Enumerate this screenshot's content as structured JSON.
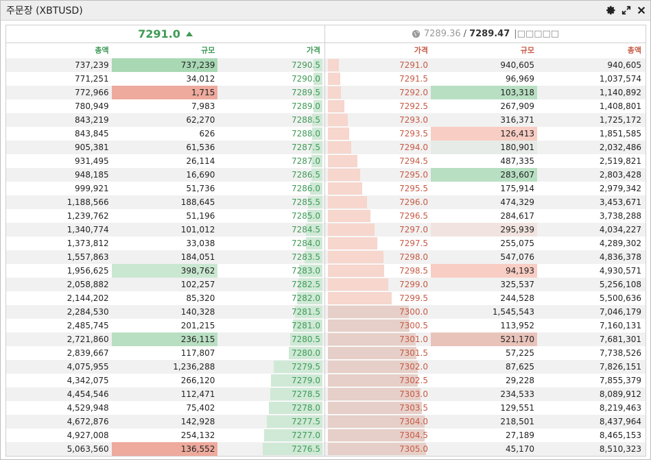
{
  "window": {
    "title": "주문장 (XBTUSD)"
  },
  "summary": {
    "last_price": "7291.0",
    "index_price": "7289.36",
    "mark_price": "7289.47",
    "separator": "/",
    "funding": "□□□□□"
  },
  "headers": {
    "bid_total": "총액",
    "bid_size": "규모",
    "bid_price": "가격",
    "ask_price": "가격",
    "ask_size": "규모",
    "ask_total": "총액"
  },
  "colors": {
    "buy": "#3f9a56",
    "sell": "#c65a45"
  },
  "bids": [
    {
      "total": "737,239",
      "size": "737,239",
      "price": "7290.5",
      "depth": 0.09,
      "hl": "hl-green"
    },
    {
      "total": "771,251",
      "size": "34,012",
      "price": "7290.0",
      "depth": 0.09,
      "hl": ""
    },
    {
      "total": "772,966",
      "size": "1,715",
      "price": "7289.5",
      "depth": 0.09,
      "hl": "hl-red"
    },
    {
      "total": "780,949",
      "size": "7,983",
      "price": "7289.0",
      "depth": 0.09,
      "hl": ""
    },
    {
      "total": "843,219",
      "size": "62,270",
      "price": "7288.5",
      "depth": 0.1,
      "hl": ""
    },
    {
      "total": "843,845",
      "size": "626",
      "price": "7288.0",
      "depth": 0.1,
      "hl": ""
    },
    {
      "total": "905,381",
      "size": "61,536",
      "price": "7287.5",
      "depth": 0.11,
      "hl": ""
    },
    {
      "total": "931,495",
      "size": "26,114",
      "price": "7287.0",
      "depth": 0.11,
      "hl": ""
    },
    {
      "total": "948,185",
      "size": "16,690",
      "price": "7286.5",
      "depth": 0.11,
      "hl": ""
    },
    {
      "total": "999,921",
      "size": "51,736",
      "price": "7286.0",
      "depth": 0.12,
      "hl": ""
    },
    {
      "total": "1,188,566",
      "size": "188,645",
      "price": "7285.5",
      "depth": 0.14,
      "hl": ""
    },
    {
      "total": "1,239,762",
      "size": "51,196",
      "price": "7285.0",
      "depth": 0.15,
      "hl": ""
    },
    {
      "total": "1,340,774",
      "size": "101,012",
      "price": "7284.5",
      "depth": 0.16,
      "hl": ""
    },
    {
      "total": "1,373,812",
      "size": "33,038",
      "price": "7284.0",
      "depth": 0.16,
      "hl": ""
    },
    {
      "total": "1,557,863",
      "size": "184,051",
      "price": "7283.5",
      "depth": 0.18,
      "hl": ""
    },
    {
      "total": "1,956,625",
      "size": "398,762",
      "price": "7283.0",
      "depth": 0.23,
      "hl": "hl-green-l"
    },
    {
      "total": "2,058,882",
      "size": "102,257",
      "price": "7282.5",
      "depth": 0.24,
      "hl": ""
    },
    {
      "total": "2,144,202",
      "size": "85,320",
      "price": "7282.0",
      "depth": 0.25,
      "hl": ""
    },
    {
      "total": "2,284,530",
      "size": "140,328",
      "price": "7281.5",
      "depth": 0.27,
      "hl": ""
    },
    {
      "total": "2,485,745",
      "size": "201,215",
      "price": "7281.0",
      "depth": 0.29,
      "hl": ""
    },
    {
      "total": "2,721,860",
      "size": "236,115",
      "price": "7280.5",
      "depth": 0.32,
      "hl": "hl-green-m"
    },
    {
      "total": "2,839,667",
      "size": "117,807",
      "price": "7280.0",
      "depth": 0.33,
      "hl": ""
    },
    {
      "total": "4,075,955",
      "size": "1,236,288",
      "price": "7279.5",
      "depth": 0.48,
      "hl": ""
    },
    {
      "total": "4,342,075",
      "size": "266,120",
      "price": "7279.0",
      "depth": 0.51,
      "hl": ""
    },
    {
      "total": "4,454,546",
      "size": "112,471",
      "price": "7278.5",
      "depth": 0.52,
      "hl": ""
    },
    {
      "total": "4,529,948",
      "size": "75,402",
      "price": "7278.0",
      "depth": 0.53,
      "hl": ""
    },
    {
      "total": "4,672,876",
      "size": "142,928",
      "price": "7277.5",
      "depth": 0.55,
      "hl": ""
    },
    {
      "total": "4,927,008",
      "size": "254,132",
      "price": "7277.0",
      "depth": 0.58,
      "hl": ""
    },
    {
      "total": "5,063,560",
      "size": "136,552",
      "price": "7276.5",
      "depth": 0.59,
      "hl": "hl-red"
    }
  ],
  "asks": [
    {
      "price": "7291.0",
      "size": "940,605",
      "total": "940,605",
      "depth": 0.11,
      "hl": ""
    },
    {
      "price": "7291.5",
      "size": "96,969",
      "total": "1,037,574",
      "depth": 0.12,
      "hl": ""
    },
    {
      "price": "7292.0",
      "size": "103,318",
      "total": "1,140,892",
      "depth": 0.13,
      "hl": "hl-green-m"
    },
    {
      "price": "7292.5",
      "size": "267,909",
      "total": "1,408,801",
      "depth": 0.16,
      "hl": ""
    },
    {
      "price": "7293.0",
      "size": "316,371",
      "total": "1,725,172",
      "depth": 0.2,
      "hl": ""
    },
    {
      "price": "7293.5",
      "size": "126,413",
      "total": "1,851,585",
      "depth": 0.21,
      "hl": "hl-red-l"
    },
    {
      "price": "7294.0",
      "size": "180,901",
      "total": "2,032,486",
      "depth": 0.23,
      "hl": "hl-gray"
    },
    {
      "price": "7294.5",
      "size": "487,335",
      "total": "2,519,821",
      "depth": 0.29,
      "hl": ""
    },
    {
      "price": "7295.0",
      "size": "283,607",
      "total": "2,803,428",
      "depth": 0.32,
      "hl": "hl-green-m"
    },
    {
      "price": "7295.5",
      "size": "175,914",
      "total": "2,979,342",
      "depth": 0.34,
      "hl": ""
    },
    {
      "price": "7296.0",
      "size": "474,329",
      "total": "3,453,671",
      "depth": 0.39,
      "hl": ""
    },
    {
      "price": "7296.5",
      "size": "284,617",
      "total": "3,738,288",
      "depth": 0.42,
      "hl": ""
    },
    {
      "price": "7297.0",
      "size": "295,939",
      "total": "4,034,227",
      "depth": 0.46,
      "hl": "hl-red-xl"
    },
    {
      "price": "7297.5",
      "size": "255,075",
      "total": "4,289,302",
      "depth": 0.49,
      "hl": ""
    },
    {
      "price": "7298.0",
      "size": "547,076",
      "total": "4,836,378",
      "depth": 0.55,
      "hl": ""
    },
    {
      "price": "7298.5",
      "size": "94,193",
      "total": "4,930,571",
      "depth": 0.56,
      "hl": "hl-red-l"
    },
    {
      "price": "7299.0",
      "size": "325,537",
      "total": "5,256,108",
      "depth": 0.6,
      "hl": ""
    },
    {
      "price": "7299.5",
      "size": "244,528",
      "total": "5,500,636",
      "depth": 0.63,
      "hl": ""
    },
    {
      "price": "7300.0",
      "size": "1,545,543",
      "total": "7,046,179",
      "depth": 0.8,
      "hl": ""
    },
    {
      "price": "7300.5",
      "size": "113,952",
      "total": "7,160,131",
      "depth": 0.81,
      "hl": ""
    },
    {
      "price": "7301.0",
      "size": "521,170",
      "total": "7,681,301",
      "depth": 0.87,
      "hl": "hl-red-d"
    },
    {
      "price": "7301.5",
      "size": "57,225",
      "total": "7,738,526",
      "depth": 0.88,
      "hl": ""
    },
    {
      "price": "7302.0",
      "size": "87,625",
      "total": "7,826,151",
      "depth": 0.89,
      "hl": ""
    },
    {
      "price": "7302.5",
      "size": "29,228",
      "total": "7,855,379",
      "depth": 0.89,
      "hl": ""
    },
    {
      "price": "7303.0",
      "size": "234,533",
      "total": "8,089,912",
      "depth": 0.92,
      "hl": ""
    },
    {
      "price": "7303.5",
      "size": "129,551",
      "total": "8,219,463",
      "depth": 0.93,
      "hl": ""
    },
    {
      "price": "7304.0",
      "size": "218,501",
      "total": "8,437,964",
      "depth": 0.96,
      "hl": ""
    },
    {
      "price": "7304.5",
      "size": "27,189",
      "total": "8,465,153",
      "depth": 0.96,
      "hl": ""
    },
    {
      "price": "7305.0",
      "size": "45,170",
      "total": "8,510,323",
      "depth": 0.97,
      "hl": ""
    }
  ]
}
